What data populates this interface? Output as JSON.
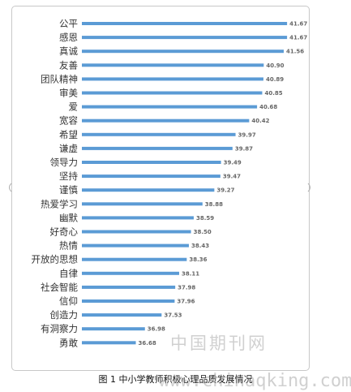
{
  "chart_data": {
    "type": "bar",
    "orientation": "horizontal",
    "categories": [
      "公平",
      "感恩",
      "真诚",
      "友善",
      "团队精神",
      "审美",
      "爱",
      "宽容",
      "希望",
      "谦虚",
      "领导力",
      "坚持",
      "谨慎",
      "热爱学习",
      "幽默",
      "好奇心",
      "热情",
      "开放的思想",
      "自律",
      "社会智能",
      "信仰",
      "创造力",
      "有洞察力",
      "勇敢"
    ],
    "values": [
      41.67,
      41.67,
      41.56,
      40.9,
      40.89,
      40.85,
      40.68,
      40.42,
      39.97,
      39.87,
      39.49,
      39.47,
      39.27,
      38.88,
      38.59,
      38.5,
      38.43,
      38.36,
      38.11,
      37.98,
      37.96,
      37.53,
      36.98,
      36.68
    ],
    "value_labels": [
      "41.67",
      "41.67",
      "41.56",
      "40.90",
      "40.89",
      "40.85",
      "40.68",
      "40.42",
      "39.97",
      "39.87",
      "39.49",
      "39.47",
      "39.27",
      "38.88",
      "38.59",
      "38.50",
      "38.43",
      "38.36",
      "38.11",
      "37.98",
      "37.96",
      "37.53",
      "36.98",
      "36.68"
    ],
    "xlim": [
      34.9,
      41.72
    ],
    "bar_color": "#5b9bd5",
    "grid": false,
    "legend": "none"
  },
  "caption": "图 1 中小学教师积极心理品质发展情况",
  "watermark": {
    "cn": "中国期刊网",
    "url": "www.chinaqking.com"
  }
}
